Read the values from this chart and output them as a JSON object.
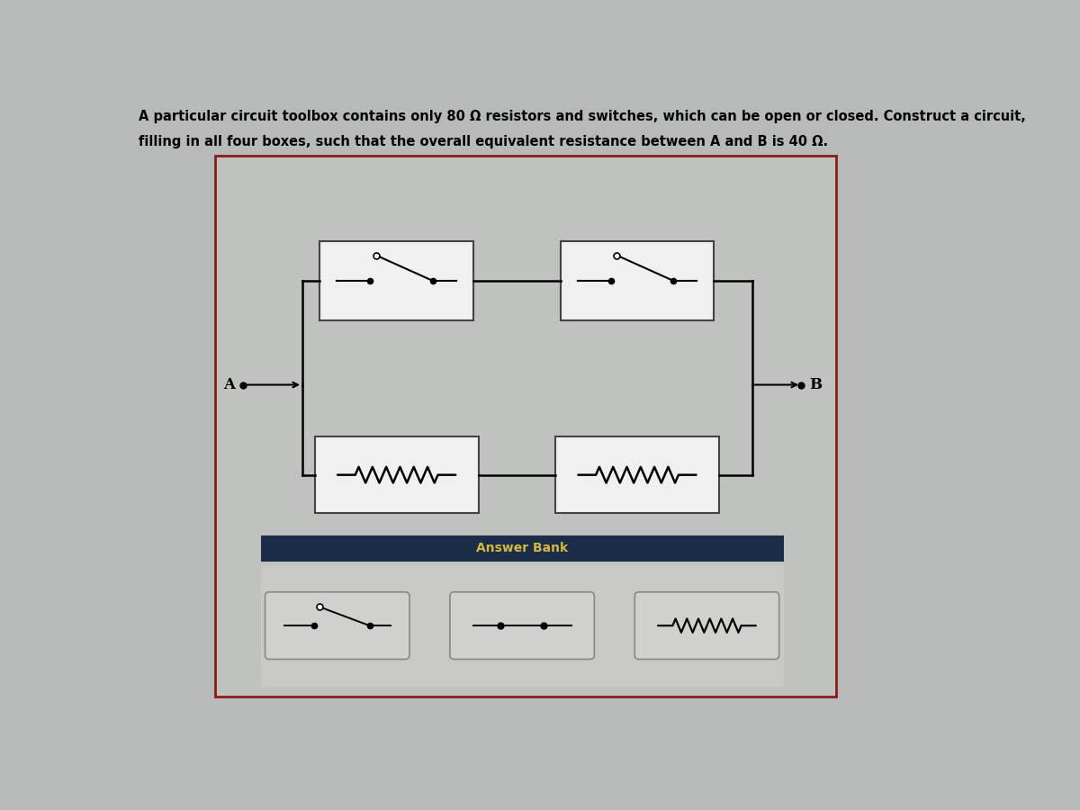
{
  "title_line1": "A particular circuit toolbox contains only 80 Ω resistors and switches, which can be open or closed. Construct a circuit,",
  "title_line2": "filling in all four boxes, such that the overall equivalent resistance between A and B is 40 Ω.",
  "bg_color": "#b8baba",
  "main_rect_bg": "#c0c2c0",
  "main_rect_edge": "#8b1a1a",
  "answer_bank_bg": "#1c2d4a",
  "answer_bank_text": "Answer Bank",
  "answer_bank_text_color": "#d4b840",
  "box_edge_color": "#444444",
  "box_face_color": "#f0f0f0",
  "wire_color": "#111111",
  "component_color": "#111111",
  "ab_box_face": "#d0d0cc",
  "ab_box_edge": "#888888"
}
